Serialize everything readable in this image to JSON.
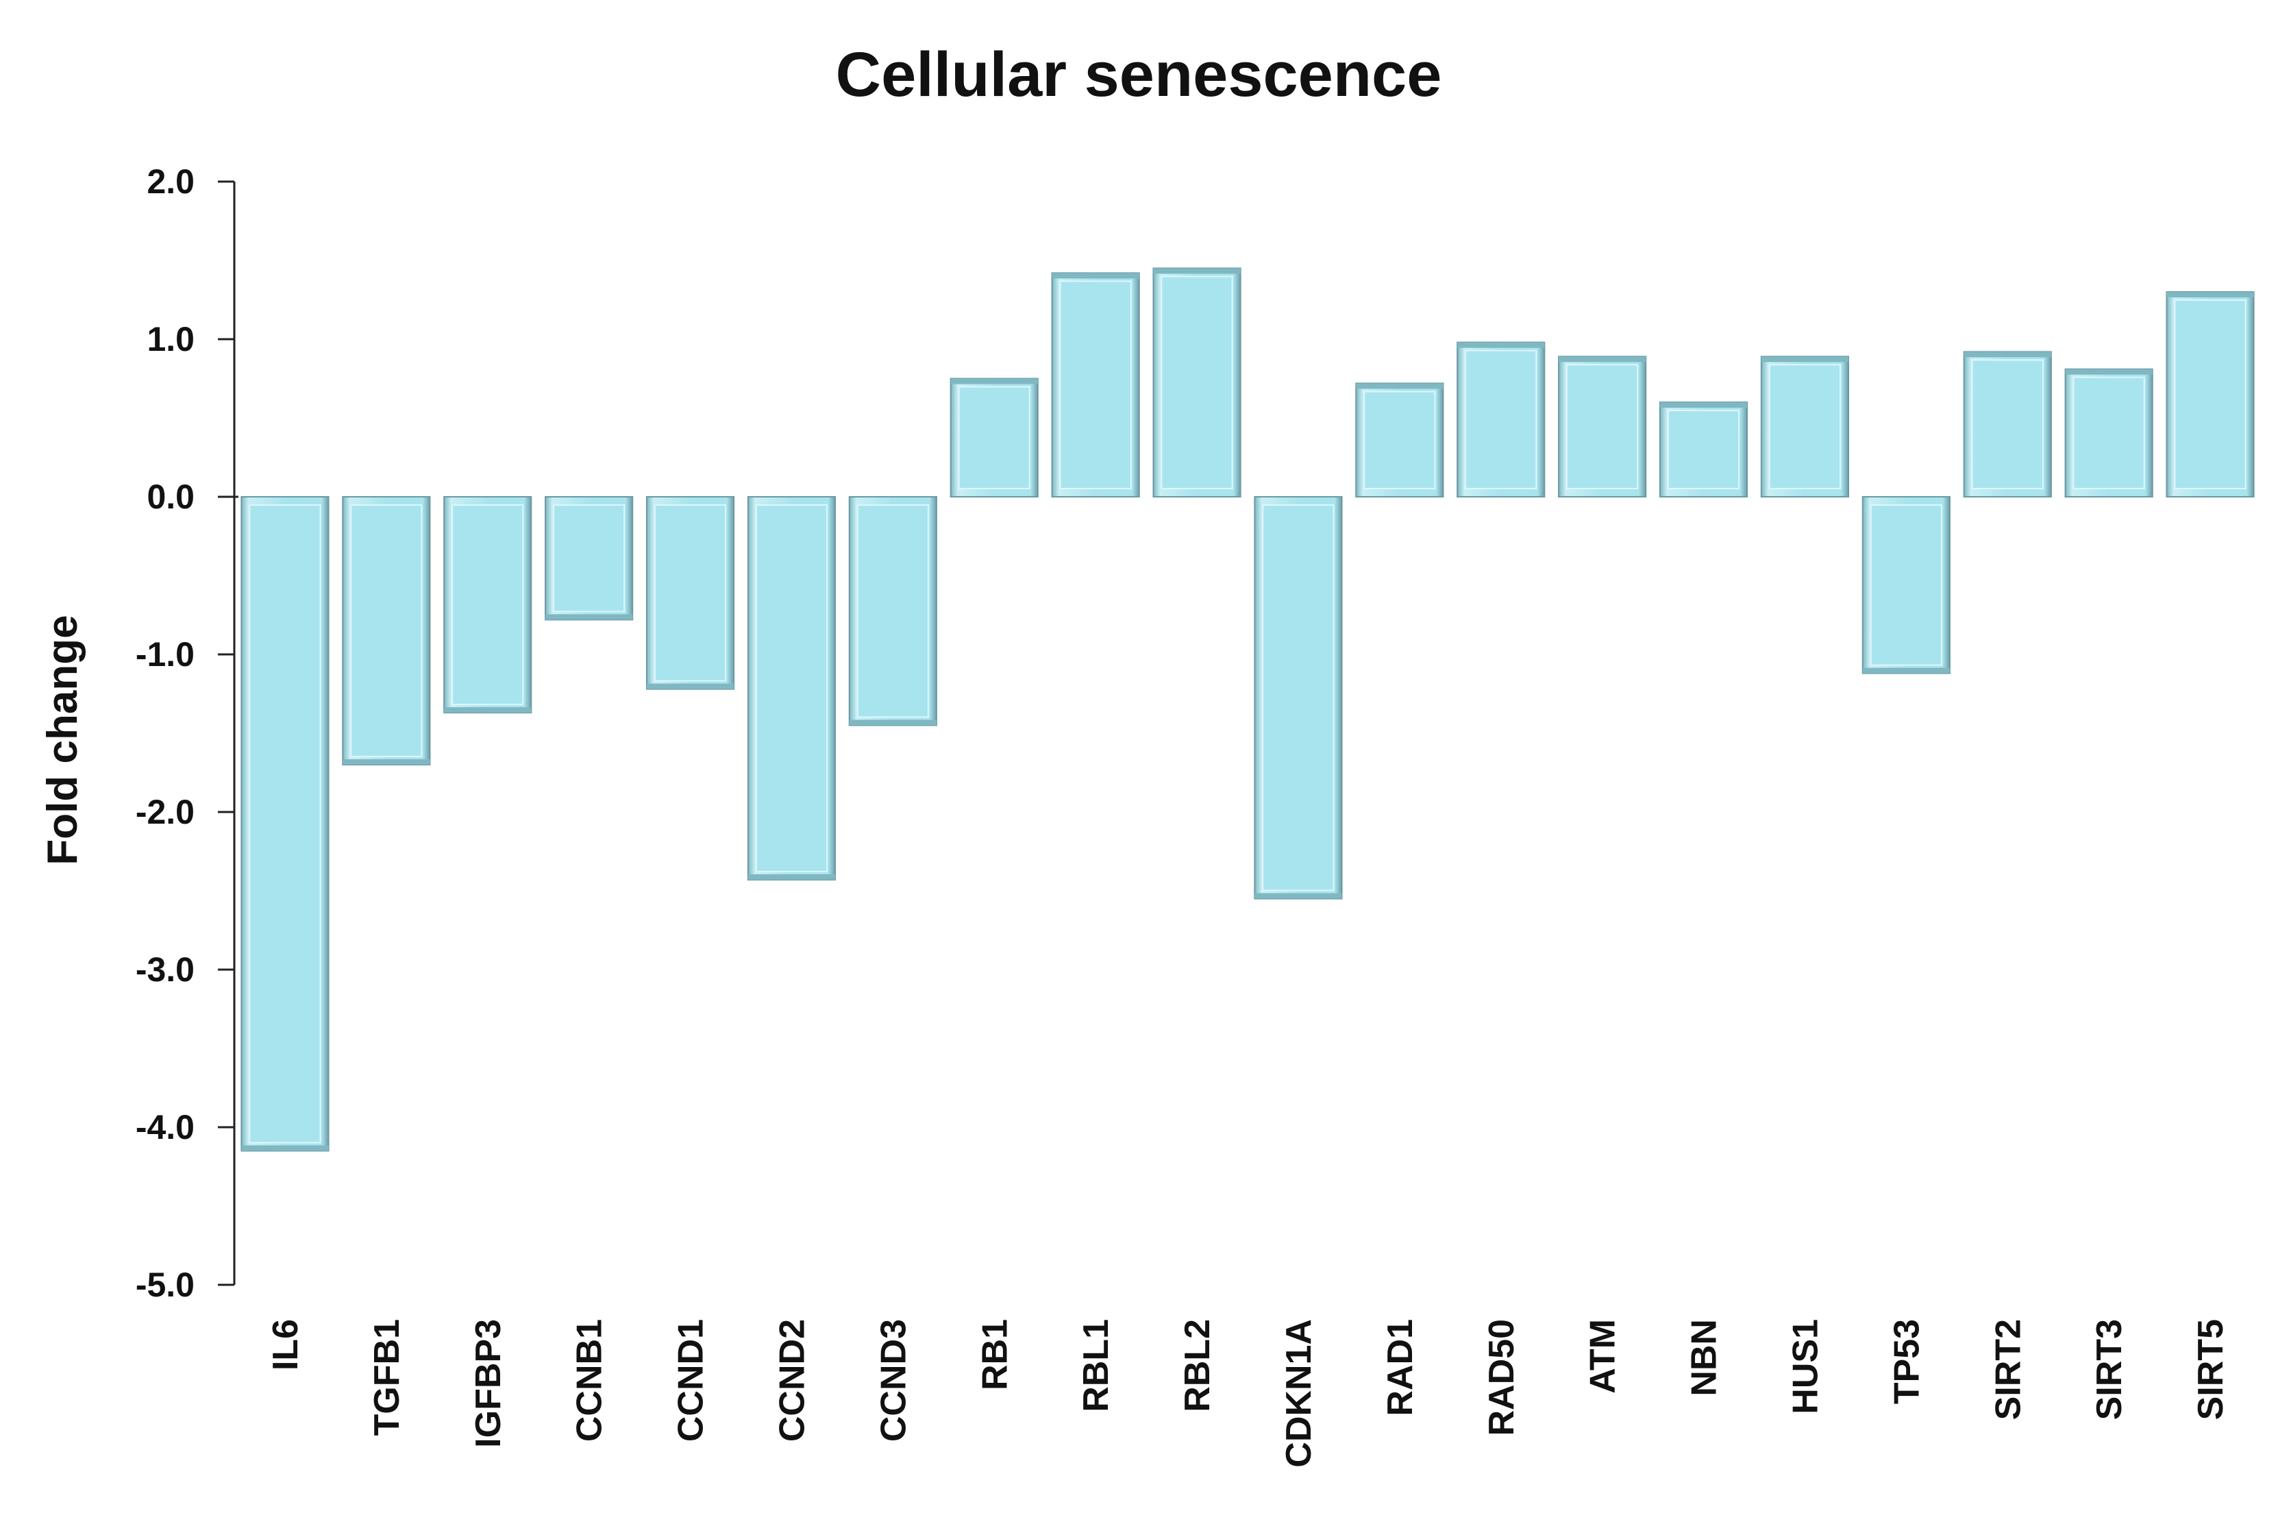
{
  "chart_data": {
    "type": "bar",
    "title": "Cellular senescence",
    "xlabel": "",
    "ylabel": "Fold change",
    "ylim": [
      -5.0,
      2.0
    ],
    "yticks": [
      "2.0",
      "1.0",
      "0.0",
      "-1.0",
      "-2.0",
      "-3.0",
      "-4.0",
      "-5.0"
    ],
    "grid": false,
    "legend": "none",
    "categories": [
      "IL6",
      "TGFB1",
      "IGFBP3",
      "CCNB1",
      "CCND1",
      "CCND2",
      "CCND3",
      "RB1",
      "RBL1",
      "RBL2",
      "CDKN1A",
      "RAD1",
      "RAD50",
      "ATM",
      "NBN",
      "HUS1",
      "TP53",
      "SIRT2",
      "SIRT3",
      "SIRT5"
    ],
    "values": [
      -4.15,
      -1.7,
      -1.37,
      -0.78,
      -1.22,
      -2.43,
      -1.45,
      0.75,
      1.42,
      1.45,
      -2.55,
      0.72,
      0.98,
      0.89,
      0.6,
      0.89,
      -1.12,
      0.92,
      0.81,
      1.3
    ],
    "colors": {
      "bar_fill": "#a8e4ee",
      "bar_edge": "#6a9aa3",
      "bar_highlight": "#dff6fa",
      "bar_shadow": "#7fb8c2",
      "axis": "#222222",
      "text": "#111111"
    }
  }
}
